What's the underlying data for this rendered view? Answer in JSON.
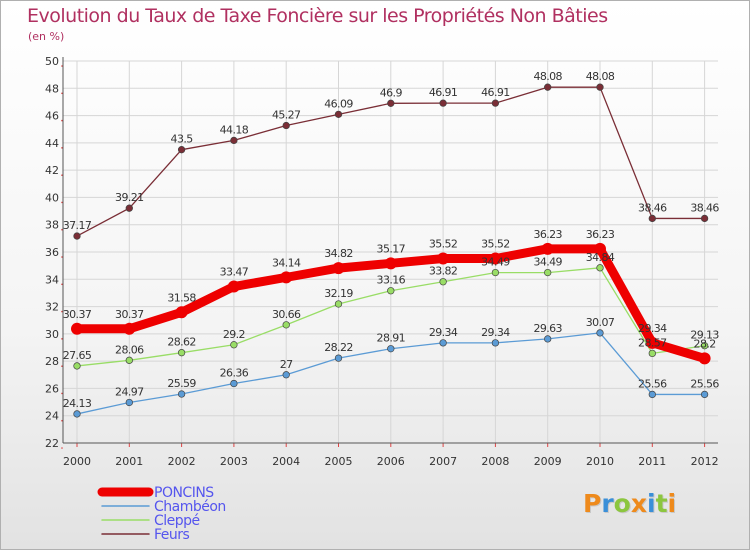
{
  "chart_data": {
    "type": "line",
    "title": "Evolution du Taux de Taxe Foncière sur les Propriétés Non Bâties",
    "subtitle": "(en %)",
    "xlabel": "",
    "ylabel": "",
    "ylim": [
      22,
      50
    ],
    "ytick_step": 2,
    "grid": true,
    "legend_position": "bottom-left",
    "x": [
      "2000",
      "2001",
      "2002",
      "2003",
      "2004",
      "2005",
      "2006",
      "2007",
      "2008",
      "2009",
      "2010",
      "2011",
      "2012"
    ],
    "series": [
      {
        "name": "PONCINS",
        "color": "#ee0000",
        "values": [
          30.37,
          30.37,
          31.58,
          33.47,
          34.14,
          34.82,
          35.17,
          35.52,
          35.52,
          36.23,
          36.23,
          29.34,
          28.2
        ],
        "labels": [
          "30.37",
          "30.37",
          "31.58",
          "33.47",
          "34.14",
          "34.82",
          "35.17",
          "35.52",
          "35.52",
          "36.23",
          "36.23",
          "29.34",
          "28.2"
        ]
      },
      {
        "name": "Chambéon",
        "color": "#5b9bd5",
        "values": [
          24.13,
          24.97,
          25.59,
          26.36,
          27,
          28.22,
          28.91,
          29.34,
          29.34,
          29.63,
          30.07,
          25.56,
          25.56
        ],
        "labels": [
          "24.13",
          "24.97",
          "25.59",
          "26.36",
          "27",
          "28.22",
          "28.91",
          "29.34",
          "29.34",
          "29.63",
          "30.07",
          "25.56",
          "25.56"
        ]
      },
      {
        "name": "Cleppé",
        "color": "#99dd66",
        "values": [
          27.65,
          28.06,
          28.62,
          29.2,
          30.66,
          32.19,
          33.16,
          33.82,
          34.49,
          34.49,
          34.84,
          28.57,
          29.13
        ],
        "labels": [
          "27.65",
          "28.06",
          "28.62",
          "29.2",
          "30.66",
          "32.19",
          "33.16",
          "33.82",
          "34.49",
          "34.49",
          "34.84",
          "28.57",
          "29.13"
        ]
      },
      {
        "name": "Feurs",
        "color": "#7a2e36",
        "values": [
          37.17,
          39.21,
          43.5,
          44.18,
          45.27,
          46.09,
          46.9,
          46.91,
          46.91,
          48.08,
          48.08,
          38.46,
          38.46
        ],
        "labels": [
          "37.17",
          "39.21",
          "43.5",
          "44.18",
          "45.27",
          "46.09",
          "46.9",
          "46.91",
          "46.91",
          "48.08",
          "48.08",
          "38.46",
          "38.46"
        ]
      }
    ]
  },
  "legend": {
    "poncins_color": "#5555ee",
    "other_text_color": "#5555ee"
  },
  "logo": {
    "letters": [
      "P",
      "r",
      "o",
      "x",
      "i",
      "t",
      "i"
    ],
    "colors": [
      "#ee8a1c",
      "#3a8fd8",
      "#8cc63f",
      "#ee8a1c",
      "#3a8fd8",
      "#8cc63f",
      "#ee8a1c"
    ]
  }
}
